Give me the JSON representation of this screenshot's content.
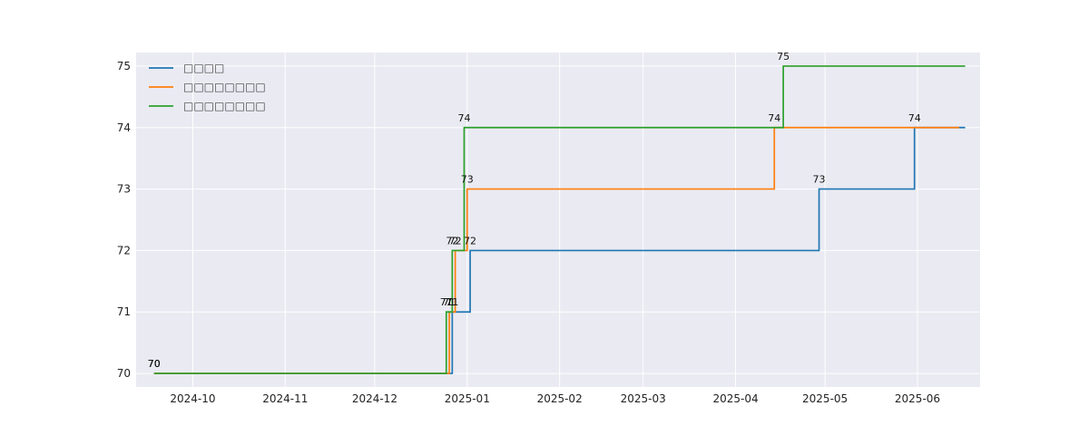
{
  "chart_data": {
    "type": "line",
    "step": "post",
    "grid": true,
    "legend_position": "top-left",
    "xlim": [
      "2024-09-12",
      "2025-06-22"
    ],
    "ylim": [
      69.78,
      75.22
    ],
    "x_ticks": [
      "2024-10-01",
      "2024-11-01",
      "2024-12-01",
      "2025-01-01",
      "2025-02-01",
      "2025-03-01",
      "2025-04-01",
      "2025-05-01",
      "2025-06-01"
    ],
    "x_tick_labels": [
      "2024-10",
      "2024-11",
      "2024-12",
      "2025-01",
      "2025-02",
      "2025-03",
      "2025-04",
      "2025-05",
      "2025-06"
    ],
    "y_ticks": [
      70,
      71,
      72,
      73,
      74,
      75
    ],
    "y_tick_labels": [
      "70",
      "71",
      "72",
      "73",
      "74",
      "75"
    ],
    "series": [
      {
        "name": "□□□□",
        "color": "#1f77b4",
        "points": [
          {
            "x": "2024-09-18",
            "y": 70,
            "label": "70"
          },
          {
            "x": "2024-12-27",
            "y": 71,
            "label": "71"
          },
          {
            "x": "2025-01-02",
            "y": 72,
            "label": "72"
          },
          {
            "x": "2025-04-29",
            "y": 73,
            "label": "73"
          },
          {
            "x": "2025-05-31",
            "y": 74,
            "label": "74"
          }
        ],
        "end_x": "2025-06-17"
      },
      {
        "name": "□□□□□□□□",
        "color": "#ff7f0e",
        "points": [
          {
            "x": "2024-09-18",
            "y": 70,
            "label": "70"
          },
          {
            "x": "2024-12-26",
            "y": 71,
            "label": "71"
          },
          {
            "x": "2024-12-28",
            "y": 72,
            "label": "72"
          },
          {
            "x": "2025-01-01",
            "y": 73,
            "label": "73"
          },
          {
            "x": "2025-04-14",
            "y": 74,
            "label": "74"
          }
        ],
        "end_x": "2025-06-15"
      },
      {
        "name": "□□□□□□□□",
        "color": "#2ca02c",
        "points": [
          {
            "x": "2024-09-18",
            "y": 70,
            "label": "70"
          },
          {
            "x": "2024-12-25",
            "y": 71,
            "label": "71"
          },
          {
            "x": "2024-12-27",
            "y": 72,
            "label": "72"
          },
          {
            "x": "2024-12-31",
            "y": 74,
            "label": "74"
          },
          {
            "x": "2025-04-17",
            "y": 75,
            "label": "75"
          }
        ],
        "end_x": "2025-06-17"
      }
    ]
  }
}
